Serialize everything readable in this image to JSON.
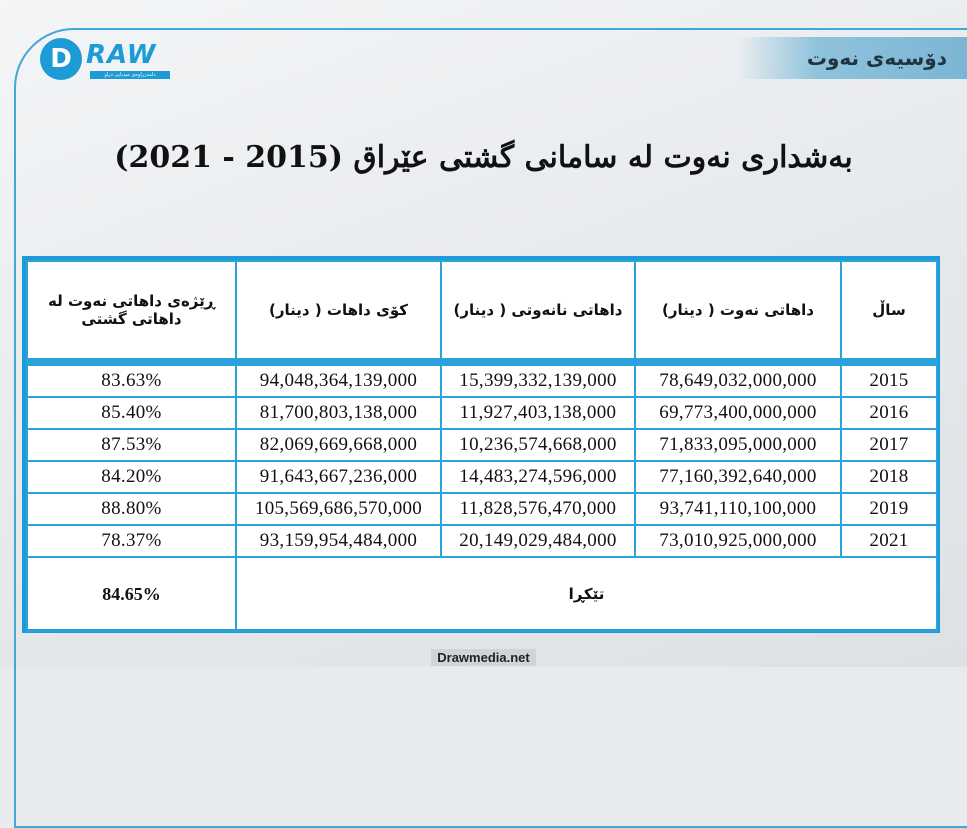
{
  "brand": {
    "logo_letter": "D",
    "logo_word": "RAW",
    "logo_tagline": "دامەزراوەی میدیایی دراو"
  },
  "section_tag": "دۆسیەی نەوت",
  "title": "بەشداری نەوت لە سامانی گشتی عێراق (2015 - 2021)",
  "table": {
    "headers": {
      "year": "ساڵ",
      "oil": "داهاتی نەوت ( دینار)",
      "nonoil": "داهاتی نانەوتی ( دینار)",
      "total": "کۆی داهات ( دینار)",
      "ratio": "ڕێژەی داهاتی نەوت لە داهاتی گشتی"
    },
    "rows": [
      {
        "year": "2015",
        "oil": "78,649,032,000,000",
        "nonoil": "15,399,332,139,000",
        "total": "94,048,364,139,000",
        "ratio": "83.63%"
      },
      {
        "year": "2016",
        "oil": "69,773,400,000,000",
        "nonoil": "11,927,403,138,000",
        "total": "81,700,803,138,000",
        "ratio": "85.40%"
      },
      {
        "year": "2017",
        "oil": "71,833,095,000,000",
        "nonoil": "10,236,574,668,000",
        "total": "82,069,669,668,000",
        "ratio": "87.53%"
      },
      {
        "year": "2018",
        "oil": "77,160,392,640,000",
        "nonoil": "14,483,274,596,000",
        "total": "91,643,667,236,000",
        "ratio": "84.20%"
      },
      {
        "year": "2019",
        "oil": "93,741,110,100,000",
        "nonoil": "11,828,576,470,000",
        "total": "105,569,686,570,000",
        "ratio": "88.80%"
      },
      {
        "year": "2021",
        "oil": "73,010,925,000,000",
        "nonoil": "20,149,029,484,000",
        "total": "93,159,954,484,000",
        "ratio": "78.37%"
      }
    ],
    "average_label": "تێکڕا",
    "average_value": "84.65%"
  },
  "footer": "Drawmedia.net"
}
